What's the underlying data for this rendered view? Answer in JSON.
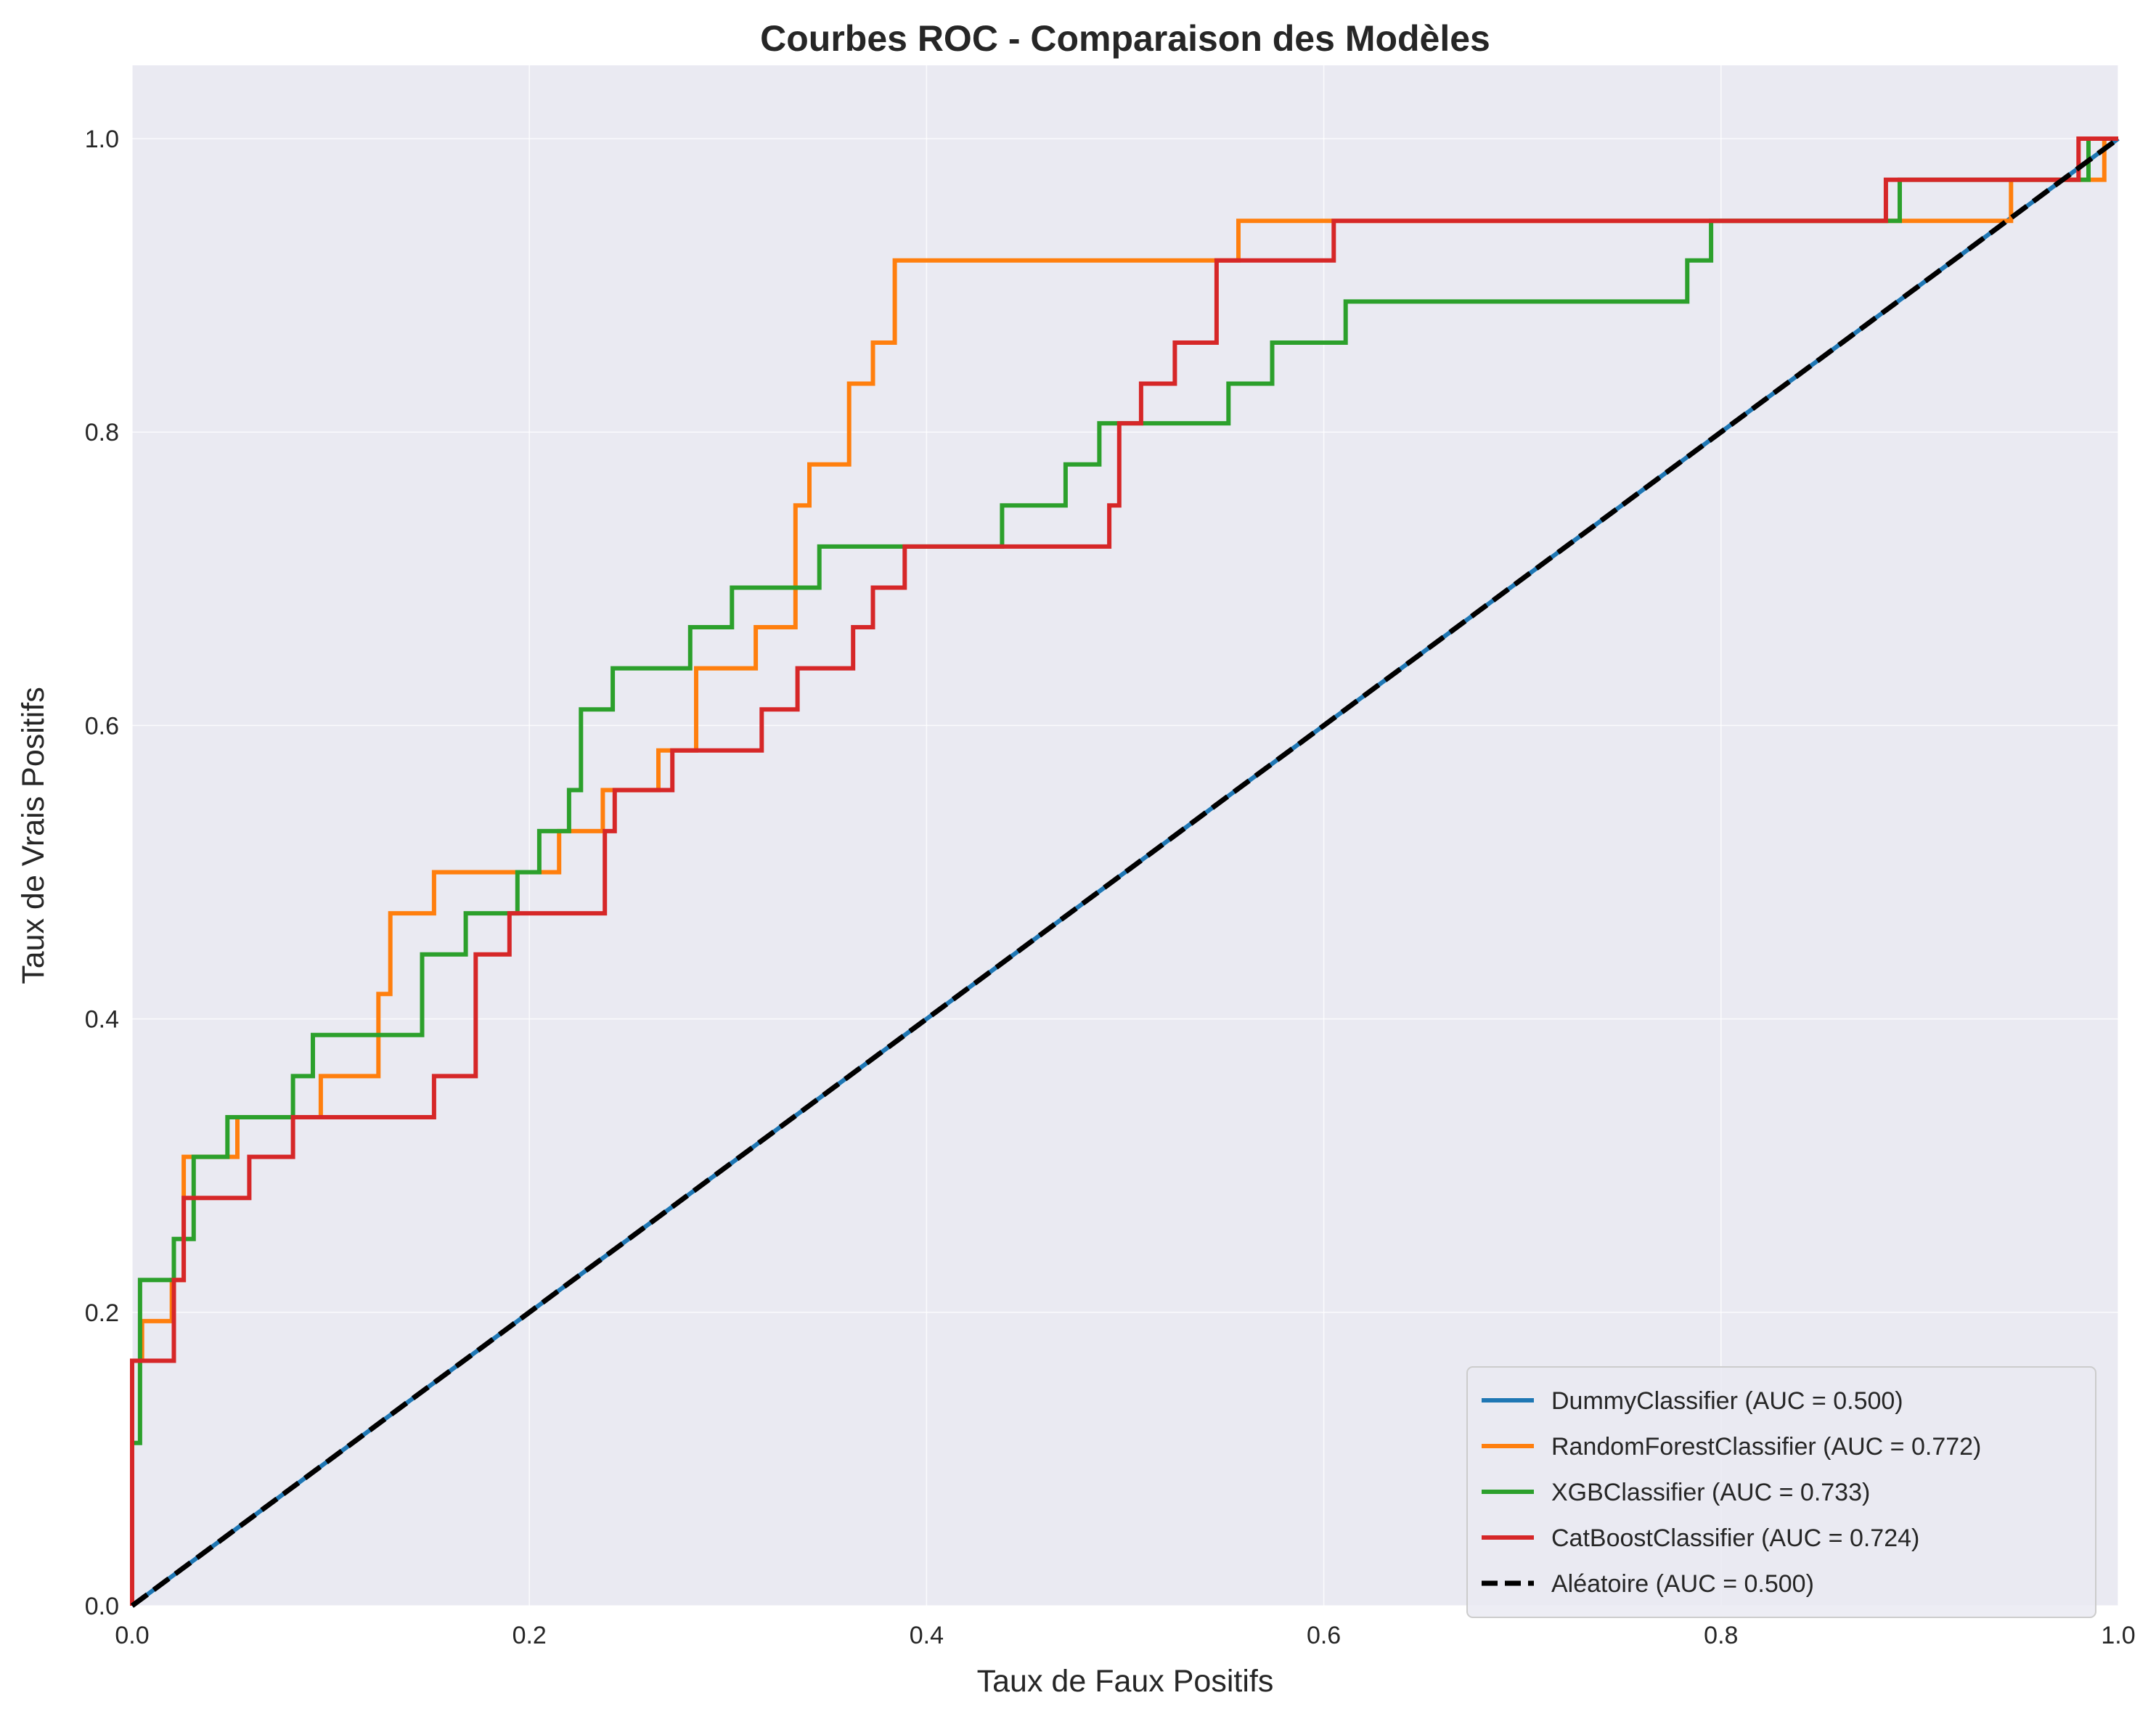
{
  "chart_data": {
    "type": "line",
    "title": "Courbes ROC - Comparaison des Modèles",
    "xlabel": "Taux de Faux Positifs",
    "ylabel": "Taux de Vrais Positifs",
    "xlim": [
      0,
      1
    ],
    "ylim": [
      0,
      1.05
    ],
    "xticks": [
      "0.0",
      "0.2",
      "0.4",
      "0.6",
      "0.8",
      "1.0"
    ],
    "yticks": [
      "0.0",
      "0.2",
      "0.4",
      "0.6",
      "0.8",
      "1.0"
    ],
    "grid": true,
    "legend_position": "lower-right",
    "background": "#eaeaf2",
    "series": [
      {
        "name": "DummyClassifier (AUC = 0.500)",
        "color": "#1f77b4",
        "style": "solid",
        "x": [
          0,
          1
        ],
        "y": [
          0,
          1
        ]
      },
      {
        "name": "RandomForestClassifier (AUC = 0.772)",
        "color": "#ff7f0e",
        "style": "step",
        "x": [
          0,
          0,
          0.005,
          0.005,
          0.02,
          0.02,
          0.026,
          0.026,
          0.053,
          0.053,
          0.095,
          0.095,
          0.124,
          0.124,
          0.13,
          0.13,
          0.152,
          0.152,
          0.215,
          0.215,
          0.237,
          0.237,
          0.265,
          0.265,
          0.284,
          0.284,
          0.314,
          0.314,
          0.334,
          0.334,
          0.341,
          0.341,
          0.361,
          0.361,
          0.373,
          0.373,
          0.384,
          0.384,
          0.557,
          0.557,
          0.946,
          0.946,
          0.98,
          0.98,
          0.993,
          0.993,
          1
        ],
        "y": [
          0,
          0.167,
          0.167,
          0.194,
          0.194,
          0.222,
          0.222,
          0.306,
          0.306,
          0.333,
          0.333,
          0.361,
          0.361,
          0.417,
          0.417,
          0.472,
          0.472,
          0.5,
          0.5,
          0.528,
          0.528,
          0.556,
          0.556,
          0.583,
          0.583,
          0.639,
          0.639,
          0.667,
          0.667,
          0.75,
          0.75,
          0.778,
          0.778,
          0.833,
          0.833,
          0.861,
          0.861,
          0.917,
          0.917,
          0.944,
          0.944,
          0.972,
          0.972,
          0.972,
          0.972,
          1,
          1
        ]
      },
      {
        "name": "XGBClassifier (AUC = 0.733)",
        "color": "#2ca02c",
        "style": "step",
        "x": [
          0,
          0,
          0.004,
          0.004,
          0.021,
          0.021,
          0.031,
          0.031,
          0.048,
          0.048,
          0.081,
          0.081,
          0.091,
          0.091,
          0.146,
          0.146,
          0.168,
          0.168,
          0.194,
          0.194,
          0.205,
          0.205,
          0.22,
          0.22,
          0.226,
          0.226,
          0.242,
          0.242,
          0.281,
          0.281,
          0.302,
          0.302,
          0.346,
          0.346,
          0.438,
          0.438,
          0.47,
          0.47,
          0.487,
          0.487,
          0.552,
          0.552,
          0.574,
          0.574,
          0.611,
          0.611,
          0.783,
          0.783,
          0.795,
          0.795,
          0.89,
          0.89,
          0.985,
          0.985,
          1
        ],
        "y": [
          0,
          0.111,
          0.111,
          0.222,
          0.222,
          0.25,
          0.25,
          0.306,
          0.306,
          0.333,
          0.333,
          0.361,
          0.361,
          0.389,
          0.389,
          0.444,
          0.444,
          0.472,
          0.472,
          0.5,
          0.5,
          0.528,
          0.528,
          0.556,
          0.556,
          0.611,
          0.611,
          0.639,
          0.639,
          0.667,
          0.667,
          0.694,
          0.694,
          0.722,
          0.722,
          0.75,
          0.75,
          0.778,
          0.778,
          0.806,
          0.806,
          0.833,
          0.833,
          0.861,
          0.861,
          0.889,
          0.889,
          0.917,
          0.917,
          0.944,
          0.944,
          0.972,
          0.972,
          1,
          1
        ]
      },
      {
        "name": "CatBoostClassifier (AUC = 0.724)",
        "color": "#d62728",
        "style": "step",
        "x": [
          0,
          0,
          0.021,
          0.021,
          0.026,
          0.026,
          0.059,
          0.059,
          0.081,
          0.081,
          0.152,
          0.152,
          0.173,
          0.173,
          0.19,
          0.19,
          0.238,
          0.238,
          0.243,
          0.243,
          0.272,
          0.272,
          0.317,
          0.317,
          0.335,
          0.335,
          0.363,
          0.363,
          0.373,
          0.373,
          0.389,
          0.389,
          0.492,
          0.492,
          0.497,
          0.497,
          0.508,
          0.508,
          0.525,
          0.525,
          0.546,
          0.546,
          0.605,
          0.605,
          0.883,
          0.883,
          0.98,
          0.98,
          1
        ],
        "y": [
          0,
          0.167,
          0.167,
          0.222,
          0.222,
          0.278,
          0.278,
          0.306,
          0.306,
          0.333,
          0.333,
          0.361,
          0.361,
          0.444,
          0.444,
          0.472,
          0.472,
          0.528,
          0.528,
          0.556,
          0.556,
          0.583,
          0.583,
          0.611,
          0.611,
          0.639,
          0.639,
          0.667,
          0.667,
          0.694,
          0.694,
          0.722,
          0.722,
          0.75,
          0.75,
          0.806,
          0.806,
          0.833,
          0.833,
          0.861,
          0.861,
          0.917,
          0.917,
          0.944,
          0.944,
          0.972,
          0.972,
          1,
          1
        ]
      },
      {
        "name": "Aléatoire (AUC = 0.500)",
        "color": "#000000",
        "style": "dashed",
        "x": [
          0,
          1
        ],
        "y": [
          0,
          1
        ]
      }
    ]
  }
}
